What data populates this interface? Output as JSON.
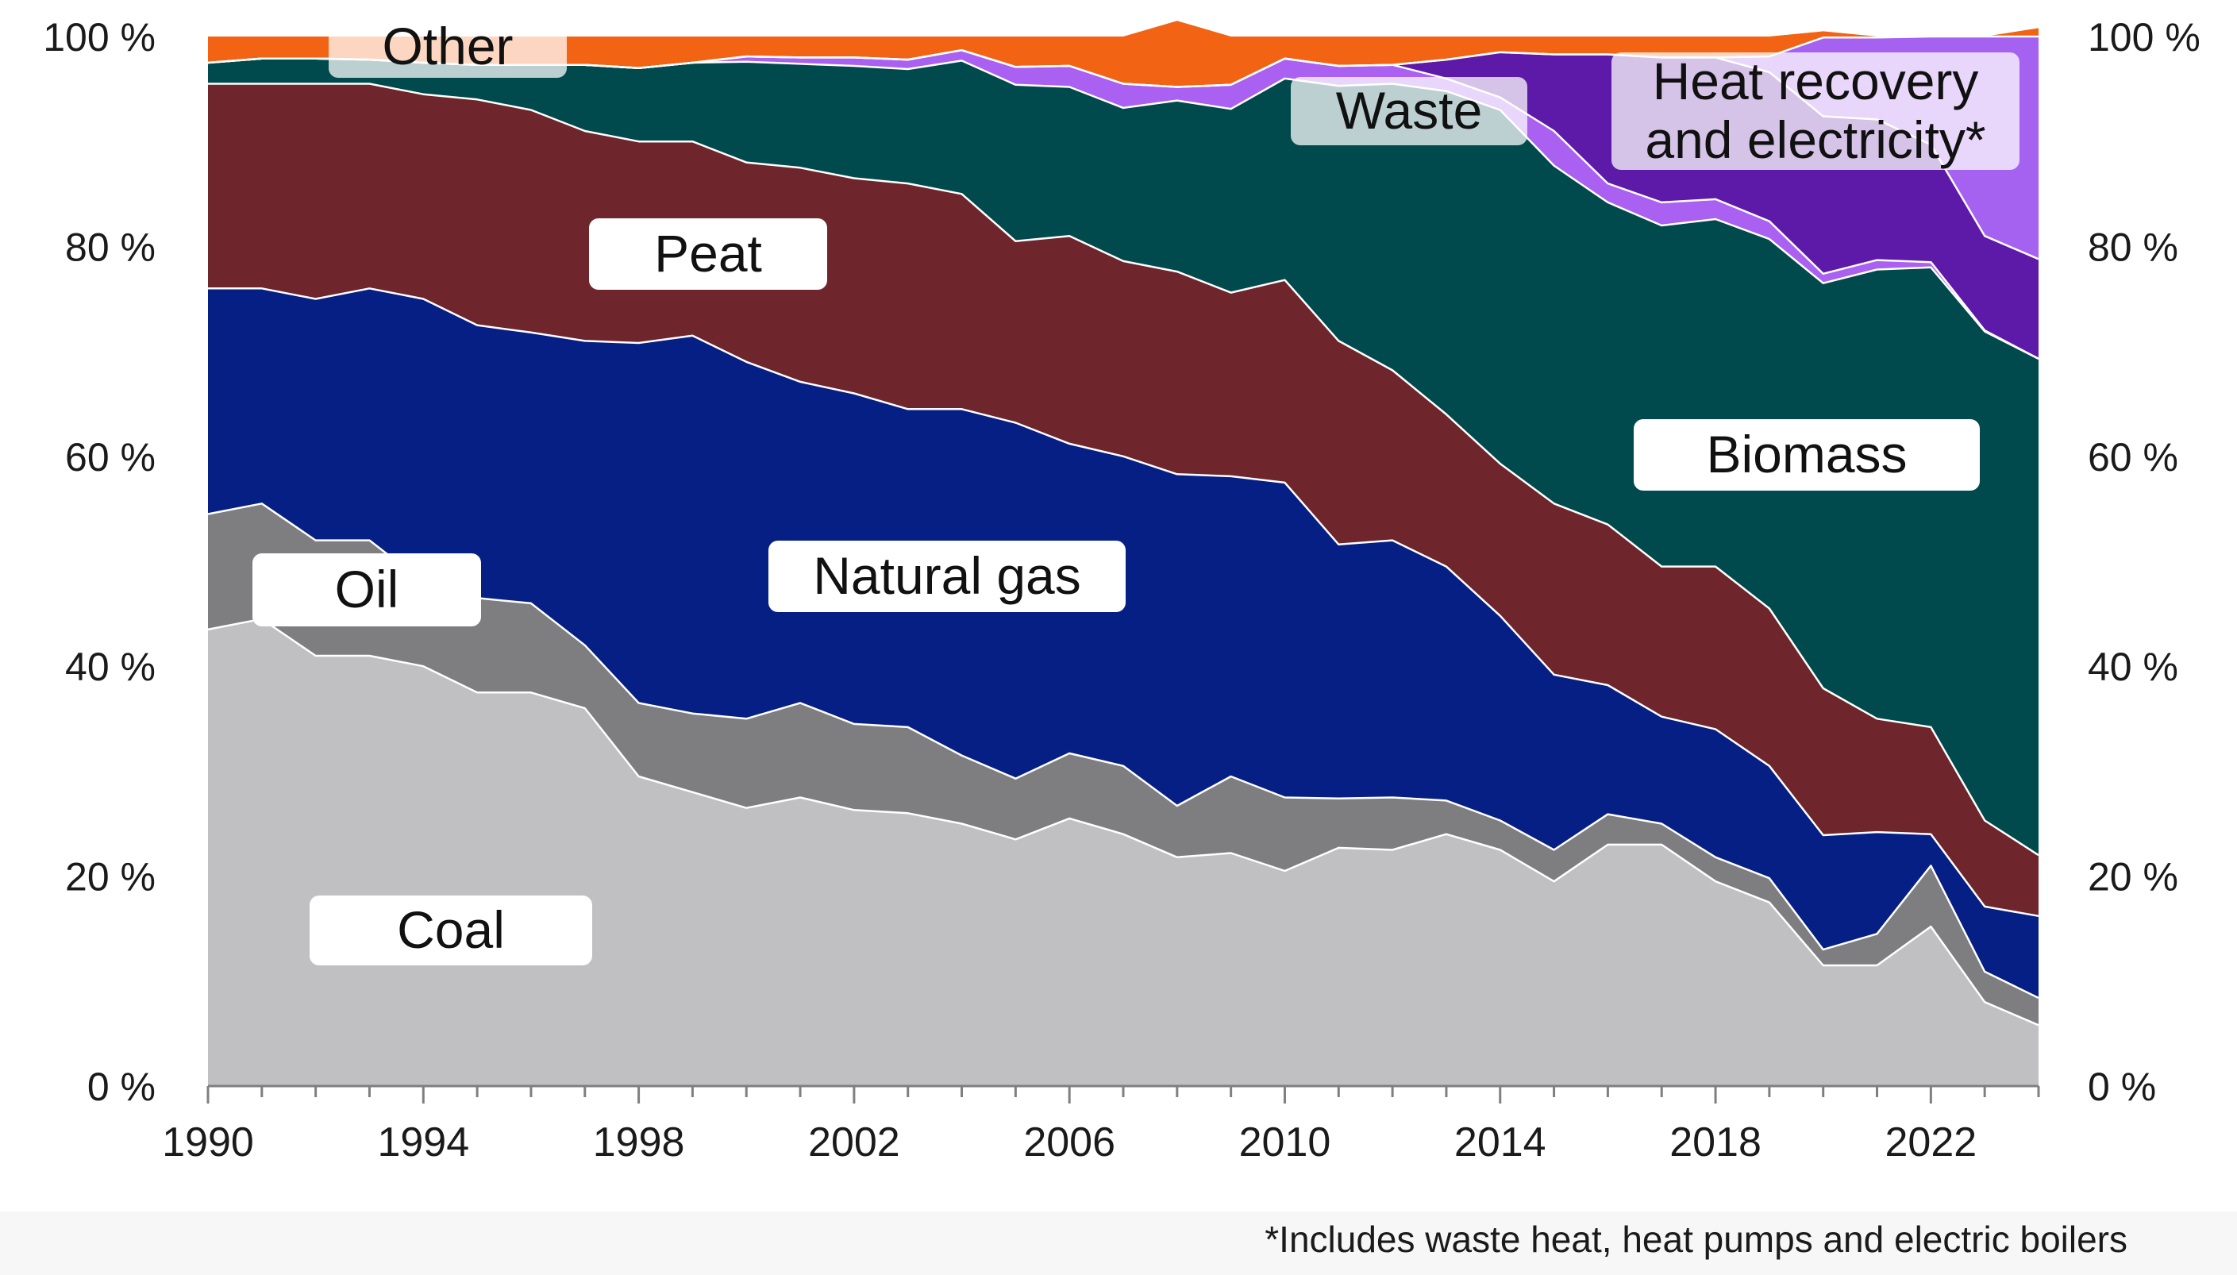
{
  "chart_data": {
    "type": "area",
    "stacked": true,
    "normalized": true,
    "x": [
      1990,
      1991,
      1992,
      1993,
      1994,
      1995,
      1996,
      1997,
      1998,
      1999,
      2000,
      2001,
      2002,
      2003,
      2004,
      2005,
      2006,
      2007,
      2008,
      2009,
      2010,
      2011,
      2012,
      2013,
      2014,
      2015,
      2016,
      2017,
      2018,
      2019,
      2020,
      2021,
      2022,
      2023,
      2024
    ],
    "x_ticks": [
      "1990",
      "1994",
      "1998",
      "2002",
      "2006",
      "2010",
      "2014",
      "2018",
      "2022"
    ],
    "x_tick_values": [
      1990,
      1994,
      1998,
      2002,
      2006,
      2010,
      2014,
      2018,
      2022
    ],
    "y_ticks": [
      "0 %",
      "20 %",
      "40 %",
      "60 %",
      "80 %",
      "100 %"
    ],
    "y_tick_values": [
      0,
      20,
      40,
      60,
      80,
      100
    ],
    "ylim": [
      0,
      100
    ],
    "series": [
      {
        "name": "Coal",
        "label": "Coal",
        "color": "#c0bfc2",
        "values": [
          43.5,
          44.5,
          41,
          41,
          40,
          37.5,
          37.5,
          36,
          29.5,
          28,
          26.5,
          27.5,
          26.3,
          26,
          25,
          23.5,
          25.5,
          24,
          21.8,
          22.2,
          20.5,
          22.7,
          22.5,
          24,
          22.5,
          19.5,
          23,
          23,
          19.5,
          17.5,
          11.5,
          11.5,
          15.2,
          8,
          5.8
        ]
      },
      {
        "name": "Oil",
        "label": "Oil",
        "color": "#7e7d80",
        "values": [
          11,
          11,
          11,
          11,
          8,
          9,
          8.5,
          6,
          7,
          7.5,
          8.5,
          9,
          8.2,
          8.2,
          6.5,
          5.8,
          6.2,
          6.5,
          4.9,
          7.3,
          7,
          4.7,
          5,
          3.2,
          2.8,
          3,
          2.9,
          2,
          2.3,
          2.3,
          1.5,
          3,
          5.8,
          2.9,
          2.6
        ]
      },
      {
        "name": "Natural gas",
        "label": "Natural gas",
        "color": "#061f84",
        "values": [
          21.5,
          20.5,
          23,
          24,
          27,
          26,
          25.8,
          29,
          34.3,
          36,
          34,
          30.6,
          31.5,
          30.3,
          33,
          33.9,
          29.5,
          29.5,
          31.6,
          28.6,
          30,
          24.2,
          24.5,
          22.3,
          19.5,
          16.7,
          12.3,
          10.2,
          12.2,
          10.7,
          10.9,
          9.7,
          3,
          6.2,
          7.8
        ]
      },
      {
        "name": "Peat",
        "label": "Peat",
        "color": "#6e252b",
        "values": [
          19.5,
          19.5,
          20.5,
          19.5,
          19.5,
          21.5,
          21.2,
          20,
          19.2,
          18.5,
          19,
          20.4,
          20.5,
          21.5,
          20.5,
          17.3,
          19.8,
          18.6,
          19.3,
          17.5,
          19.3,
          19.4,
          16.2,
          14.5,
          14.5,
          16.3,
          15.3,
          14.3,
          15.5,
          15,
          14,
          10.8,
          10.2,
          8.2,
          5.8
        ]
      },
      {
        "name": "Biomass",
        "label": "Biomass",
        "color": "#004a4d",
        "values": [
          2,
          2.4,
          2.4,
          2.3,
          3,
          3.3,
          4.3,
          6.3,
          7,
          7.5,
          9.6,
          9.9,
          10.7,
          10.9,
          12.7,
          14.9,
          14.2,
          14.6,
          16.3,
          17.5,
          19.2,
          24.3,
          27.3,
          30.8,
          33.7,
          32.2,
          30.7,
          32.5,
          33.1,
          35.2,
          38.6,
          42.8,
          43.8,
          46.6,
          47.3
        ]
      },
      {
        "name": "Waste",
        "label": "Waste",
        "color": "#aa60f0",
        "values": [
          0,
          0,
          0,
          0,
          0,
          0,
          0,
          0,
          0,
          0,
          0.5,
          0.6,
          0.8,
          0.9,
          1,
          1.7,
          2,
          2.3,
          1.3,
          2.3,
          1.9,
          1.9,
          1.8,
          1.2,
          1.2,
          3.3,
          1.8,
          2.2,
          1.9,
          1.7,
          0.9,
          0.9,
          0.5,
          0.1,
          0
        ]
      },
      {
        "name": "Heat recovery and electricity*",
        "label": "Heat recovery\nand electricity*",
        "color": "#5d1aa8",
        "values": [
          0,
          0,
          0,
          0,
          0,
          0,
          0,
          0,
          0,
          0,
          0,
          0,
          0,
          0,
          0,
          0,
          0,
          0,
          0,
          0,
          0,
          0,
          0,
          1.8,
          4.3,
          7.3,
          12.3,
          13.8,
          13.5,
          14.2,
          15,
          13.4,
          11.2,
          9,
          9.5
        ]
      },
      {
        "name": "Heat recovery and electricity*",
        "label": "",
        "color": "#a561f0",
        "values": [
          0,
          0,
          0,
          0,
          0,
          0,
          0,
          0,
          0,
          0,
          0,
          0,
          0,
          0,
          0,
          0,
          0,
          0,
          0,
          0,
          0,
          0,
          0,
          0,
          0,
          0,
          0,
          0,
          0,
          1.5,
          7.5,
          7.8,
          10.3,
          19,
          21.2
        ]
      },
      {
        "name": "Other",
        "label": "Other",
        "color": "#f26313",
        "values": [
          2.5,
          2.1,
          2.1,
          2.2,
          2.5,
          2.7,
          2.7,
          2.7,
          3,
          2.5,
          1.9,
          2,
          2,
          2.2,
          1.3,
          2.9,
          2.8,
          4.5,
          6.3,
          4.6,
          2.1,
          2.8,
          2.7,
          2.2,
          1.5,
          1.7,
          1.7,
          2,
          2,
          1.9,
          0.6,
          0.1,
          0,
          0,
          0.8
        ]
      }
    ],
    "area_labels": [
      {
        "series": "Coal",
        "text": "Coal"
      },
      {
        "series": "Oil",
        "text": "Oil"
      },
      {
        "series": "Natural gas",
        "text": "Natural gas"
      },
      {
        "series": "Peat",
        "text": "Peat"
      },
      {
        "series": "Biomass",
        "text": "Biomass"
      },
      {
        "series": "Waste",
        "text": "Waste"
      },
      {
        "series": "Heat recovery and electricity*",
        "text": "Heat recovery\nand electricity*"
      },
      {
        "series": "Other",
        "text": "Other"
      }
    ],
    "footnote": "*Includes waste heat, heat pumps and electric boilers"
  }
}
